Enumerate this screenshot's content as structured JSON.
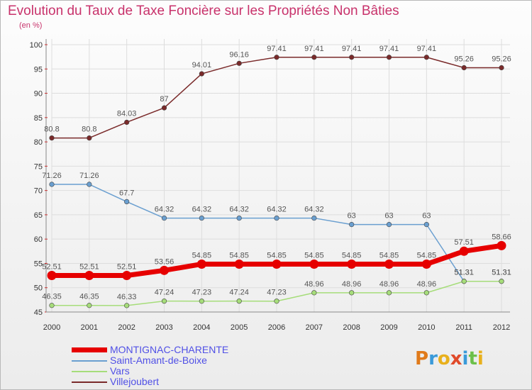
{
  "title": "Evolution du Taux de Taxe Foncière sur les Propriétés Non Bâties",
  "unit_label": "(en %)",
  "brand": [
    "P",
    "r",
    "o",
    "x",
    "i",
    "t",
    "i"
  ],
  "brand_colors": [
    "#e07a1a",
    "#3a9ad9",
    "#e8b01c",
    "#e04a2a",
    "#3a9ad9",
    "#6cc04a",
    "#e8b01c"
  ],
  "colors": {
    "grid": "#dddddd",
    "axis": "#888888"
  },
  "chart_data": {
    "type": "line",
    "title": "Evolution du Taux de Taxe Foncière sur les Propriétés Non Bâties",
    "ylabel": "(en %)",
    "xlabel": "",
    "x": [
      "2000",
      "2001",
      "2002",
      "2003",
      "2004",
      "2005",
      "2006",
      "2007",
      "2008",
      "2009",
      "2010",
      "2011",
      "2012"
    ],
    "ylim": [
      45,
      100
    ],
    "yticks": [
      45,
      50,
      55,
      60,
      65,
      70,
      75,
      80,
      85,
      90,
      95,
      100
    ],
    "grid": true,
    "legend_position": "bottom-left",
    "series": [
      {
        "name": "MONTIGNAC-CHARENTE",
        "color": "#e60000",
        "width": 7,
        "values": [
          52.51,
          52.51,
          52.51,
          53.56,
          54.85,
          54.85,
          54.85,
          54.85,
          54.85,
          54.85,
          54.85,
          57.51,
          58.66
        ],
        "labels": [
          "52.51",
          "52.51",
          "52.51",
          "53.56",
          "54.85",
          "54.85",
          "54.85",
          "54.85",
          "54.85",
          "54.85",
          "54.85",
          "57.51",
          "58.66"
        ]
      },
      {
        "name": "Saint-Amant-de-Boixe",
        "color": "#6a9fd0",
        "width": 1.5,
        "values": [
          71.26,
          71.26,
          67.7,
          64.32,
          64.32,
          64.32,
          64.32,
          64.32,
          63,
          63,
          63,
          51.31,
          51.31
        ],
        "labels": [
          "71.26",
          "71.26",
          "67.7",
          "64.32",
          "64.32",
          "64.32",
          "64.32",
          "64.32",
          "63",
          "63",
          "63",
          "51.31",
          "51.31"
        ]
      },
      {
        "name": "Vars",
        "color": "#a6dd7a",
        "width": 1.5,
        "values": [
          46.35,
          46.35,
          46.33,
          47.24,
          47.23,
          47.24,
          47.23,
          48.96,
          48.96,
          48.96,
          48.96,
          51.31,
          51.31
        ],
        "labels": [
          "46.35",
          "46.35",
          "46.33",
          "47.24",
          "47.23",
          "47.24",
          "47.23",
          "48.96",
          "48.96",
          "48.96",
          "48.96",
          "51.31",
          "51.31"
        ]
      },
      {
        "name": "Villejoubert",
        "color": "#7a2a2a",
        "width": 1.5,
        "values": [
          80.8,
          80.8,
          84.03,
          87,
          94.01,
          96.16,
          97.41,
          97.41,
          97.41,
          97.41,
          97.41,
          95.26,
          95.26
        ],
        "labels": [
          "80.8",
          "80.8",
          "84.03",
          "87",
          "94.01",
          "96.16",
          "97.41",
          "97.41",
          "97.41",
          "97.41",
          "97.41",
          "95.26",
          "95.26"
        ]
      }
    ]
  }
}
